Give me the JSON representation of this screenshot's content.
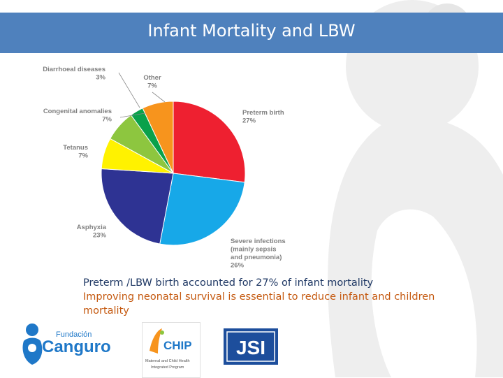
{
  "title": "Infant Mortality and LBW",
  "colors": {
    "title_bar": "#4f81bd",
    "caption_line1": "#1f3864",
    "caption_line2": "#c55a11",
    "background_silhouette": "#eeeeee"
  },
  "chart_data": {
    "type": "pie",
    "title": "",
    "slices": [
      {
        "label": "Preterm birth",
        "value": 27,
        "value_label": "27%",
        "color": "#ee2030"
      },
      {
        "label": "Severe infections (mainly sepsis and pneumonia)",
        "label_lines": [
          "Severe infections",
          "(mainly sepsis",
          "and pneumonia)"
        ],
        "value": 26,
        "value_label": "26%",
        "color": "#17a8e8"
      },
      {
        "label": "Asphyxia",
        "value": 23,
        "value_label": "23%",
        "color": "#2e3393"
      },
      {
        "label": "Tetanus",
        "value": 7,
        "value_label": "7%",
        "color": "#fff200"
      },
      {
        "label": "Congenital anomalies",
        "value": 7,
        "value_label": "7%",
        "color": "#8dc63f"
      },
      {
        "label": "Diarrhoeal diseases",
        "value": 3,
        "value_label": "3%",
        "color": "#0aa14b"
      },
      {
        "label": "Other",
        "value": 7,
        "value_label": "7%",
        "color": "#f7941d"
      }
    ]
  },
  "captions": {
    "line1": "Preterm /LBW birth accounted for 27% of infant mortality",
    "line2": "Improving neonatal survival is essential to reduce infant and children mortality"
  },
  "logos": {
    "canguro": {
      "small": "Fundación",
      "big": "Canguro"
    },
    "chip": {
      "mark": "CHIP",
      "sub1": "Maternal and Child Health",
      "sub2": "Integrated Program"
    },
    "jsi": {
      "text": "JSI"
    }
  }
}
